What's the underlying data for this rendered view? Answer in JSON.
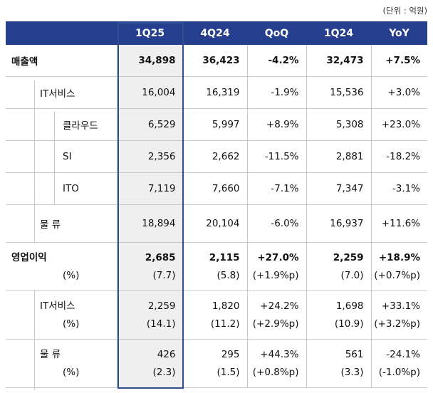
{
  "unit_label": "(단위 : 억원)",
  "headers": [
    "1Q25",
    "4Q24",
    "QoQ",
    "1Q24",
    "YoY"
  ],
  "rows": {
    "revenue": {
      "label": "매출액",
      "values": [
        "34,898",
        "36,423",
        "-4.2%",
        "32,473",
        "+7.5%"
      ]
    },
    "it_services": {
      "label": "IT서비스",
      "values": [
        "16,004",
        "16,319",
        "-1.9%",
        "15,536",
        "+3.0%"
      ]
    },
    "cloud": {
      "label": "클라우드",
      "values": [
        "6,529",
        "5,997",
        "+8.9%",
        "5,308",
        "+23.0%"
      ]
    },
    "si": {
      "label": "SI",
      "values": [
        "2,356",
        "2,662",
        "-11.5%",
        "2,881",
        "-18.2%"
      ]
    },
    "ito": {
      "label": "ITO",
      "values": [
        "7,119",
        "7,660",
        "-7.1%",
        "7,347",
        "-3.1%"
      ]
    },
    "logistics": {
      "label": "물 류",
      "values": [
        "18,894",
        "20,104",
        "-6.0%",
        "16,937",
        "+11.6%"
      ]
    },
    "op_income": {
      "label": "영업이익",
      "sub_label": "(%)",
      "values": [
        "2,685",
        "2,115",
        "+27.0%",
        "2,259",
        "+18.9%"
      ],
      "sub_values": [
        "(7.7)",
        "(5.8)",
        "(+1.9%p)",
        "(7.0)",
        "(+0.7%p)"
      ]
    },
    "op_it": {
      "label": "IT서비스",
      "sub_label": "(%)",
      "values": [
        "2,259",
        "1,820",
        "+24.2%",
        "1,698",
        "+33.1%"
      ],
      "sub_values": [
        "(14.1)",
        "(11.2)",
        "(+2.9%p)",
        "(10.9)",
        "(+3.2%p)"
      ]
    },
    "op_log": {
      "label": "물 류",
      "sub_label": "(%)",
      "values": [
        "426",
        "295",
        "+44.3%",
        "561",
        "-24.1%"
      ],
      "sub_values": [
        "(2.3)",
        "(1.5)",
        "(+0.8%p)",
        "(3.3)",
        "(-1.0%p)"
      ]
    }
  }
}
